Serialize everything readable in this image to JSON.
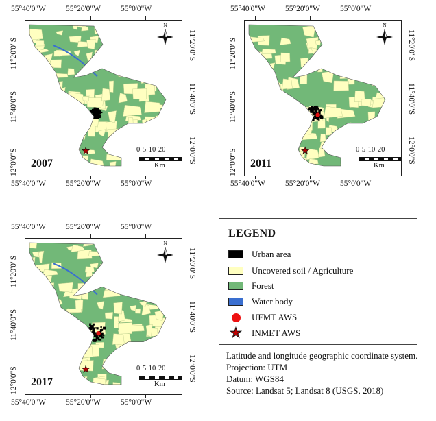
{
  "lon_labels": [
    "55°40'0\"W",
    "55°20'0\"W",
    "55°0'0\"W"
  ],
  "lat_labels": [
    "11°20'0\"S",
    "11°40'0\"S",
    "12°0'0\"S"
  ],
  "north_label": "N",
  "scale": {
    "numbers": "0  5 10     20",
    "unit": "Km"
  },
  "maps": [
    {
      "year": "2007",
      "water_body_visible": true,
      "urban_extent": "small",
      "ufmt_aws_visible": false,
      "inmet_aws_visible": true
    },
    {
      "year": "2011",
      "water_body_visible": false,
      "urban_extent": "medium",
      "ufmt_aws_visible": true,
      "inmet_aws_visible": true
    },
    {
      "year": "2017",
      "water_body_visible": true,
      "urban_extent": "large",
      "ufmt_aws_visible": true,
      "inmet_aws_visible": true
    }
  ],
  "legend": {
    "title": "LEGEND",
    "items": [
      {
        "label": "Urban area",
        "color": "#000000",
        "symbol": "swatch"
      },
      {
        "label": "Uncovered soil / Agriculture",
        "color": "#ffffc0",
        "symbol": "swatch"
      },
      {
        "label": "Forest",
        "color": "#72b878",
        "symbol": "swatch"
      },
      {
        "label": "Water body",
        "color": "#3a6fd0",
        "symbol": "swatch"
      },
      {
        "label": "UFMT AWS",
        "color": "#e11111",
        "symbol": "dot"
      },
      {
        "label": "INMET AWS",
        "color": "#b00000",
        "symbol": "star"
      }
    ]
  },
  "notes": [
    "Latitude and longitude geographic coordinate system.",
    "Projection: UTM",
    "Datum: WGS84",
    "Source: Landsat 5; Landsat 8 (USGS, 2018)"
  ]
}
